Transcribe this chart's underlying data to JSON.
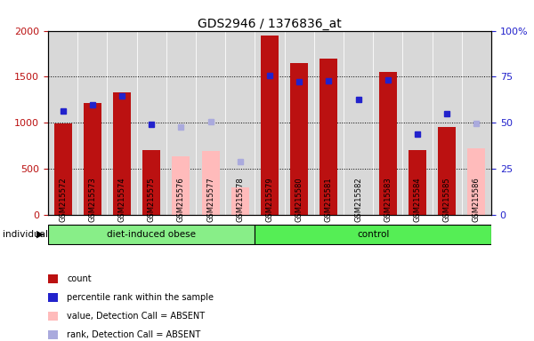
{
  "title": "GDS2946 / 1376836_at",
  "samples": [
    "GSM215572",
    "GSM215573",
    "GSM215574",
    "GSM215575",
    "GSM215576",
    "GSM215577",
    "GSM215578",
    "GSM215579",
    "GSM215580",
    "GSM215581",
    "GSM215582",
    "GSM215583",
    "GSM215584",
    "GSM215585",
    "GSM215586"
  ],
  "groups": [
    "diet-induced obese",
    "diet-induced obese",
    "diet-induced obese",
    "diet-induced obese",
    "diet-induced obese",
    "diet-induced obese",
    "diet-induced obese",
    "control",
    "control",
    "control",
    "control",
    "control",
    "control",
    "control",
    "control"
  ],
  "count_values": [
    990,
    1210,
    1330,
    700,
    null,
    null,
    null,
    1950,
    1650,
    1700,
    null,
    1550,
    700,
    950,
    null
  ],
  "rank_values": [
    1130,
    1200,
    1290,
    980,
    null,
    null,
    null,
    1510,
    1450,
    1460,
    1250,
    1470,
    880,
    1100,
    null
  ],
  "absent_count": [
    null,
    null,
    null,
    null,
    640,
    690,
    300,
    null,
    null,
    null,
    null,
    null,
    null,
    null,
    720
  ],
  "absent_rank": [
    null,
    null,
    null,
    null,
    950,
    1010,
    580,
    null,
    null,
    null,
    null,
    null,
    null,
    null,
    990
  ],
  "count_color": "#bb1111",
  "rank_color": "#2222cc",
  "absent_count_color": "#ffbbbb",
  "absent_rank_color": "#aaaadd",
  "group_colors": {
    "diet-induced obese": "#88ee88",
    "control": "#55ee55"
  },
  "ylim_left": [
    0,
    2000
  ],
  "ylim_right": [
    0,
    100
  ],
  "yticks_left": [
    0,
    500,
    1000,
    1500,
    2000
  ],
  "yticks_right": [
    0,
    25,
    50,
    75,
    100
  ],
  "ytick_labels_right": [
    "0",
    "25",
    "50",
    "75",
    "100%"
  ],
  "group_label": "individual",
  "bar_width": 0.6,
  "cell_bg_color": "#d8d8d8",
  "plot_bg_color": "#ffffff"
}
